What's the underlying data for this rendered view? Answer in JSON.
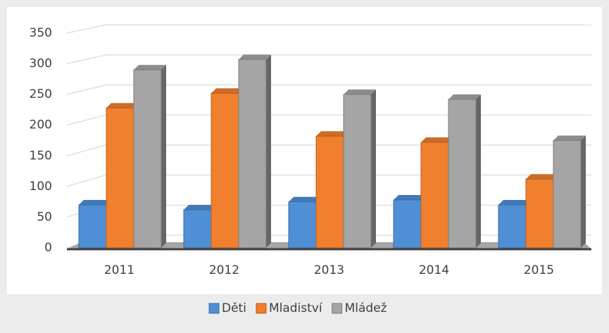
{
  "chart_data": {
    "type": "bar",
    "categories": [
      "2011",
      "2012",
      "2013",
      "2014",
      "2015"
    ],
    "series": [
      {
        "name": "Děti",
        "color": "#4f8fd6",
        "values": [
          70,
          62,
          75,
          78,
          70
        ]
      },
      {
        "name": "Mladiství",
        "color": "#f07f2e",
        "values": [
          228,
          252,
          182,
          172,
          112
        ]
      },
      {
        "name": "Mládež",
        "color": "#a5a5a5",
        "values": [
          290,
          307,
          250,
          242,
          175
        ]
      }
    ],
    "ylim": [
      0,
      350
    ],
    "yticks": [
      0,
      50,
      100,
      150,
      200,
      250,
      300,
      350
    ],
    "grid": true,
    "legend": "bottom"
  }
}
